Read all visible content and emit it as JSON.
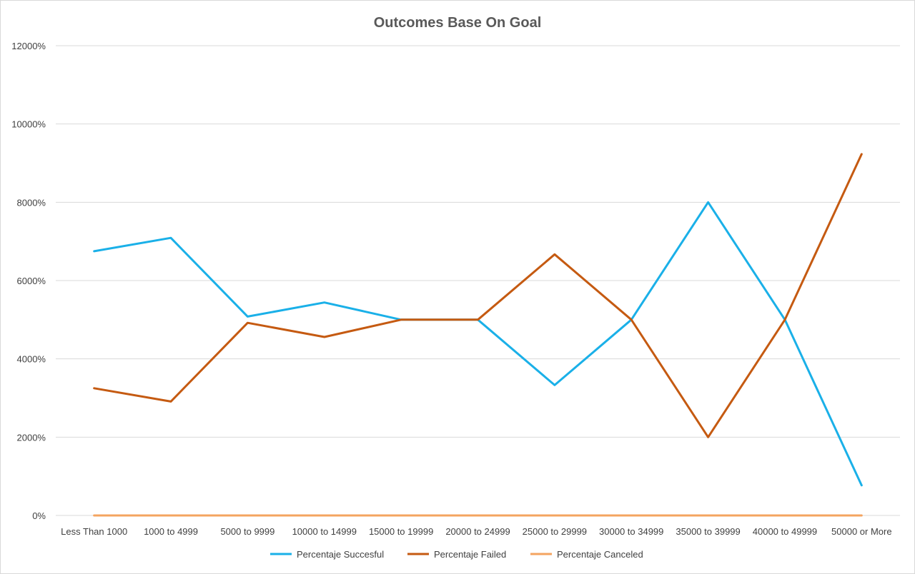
{
  "chart_data": {
    "type": "line",
    "title": "Outcomes Base On Goal",
    "xlabel": "",
    "ylabel": "",
    "categories": [
      "Less Than 1000",
      "1000 to 4999",
      "5000 to 9999",
      "10000 to 14999",
      "15000 to 19999",
      "20000 to 24999",
      "25000 to 29999",
      "30000 to 34999",
      "35000 to 39999",
      "40000 to 49999",
      "50000 or More"
    ],
    "y_ticks": [
      "0%",
      "2000%",
      "4000%",
      "6000%",
      "8000%",
      "10000%",
      "12000%"
    ],
    "ylim": [
      0,
      12000
    ],
    "grid": true,
    "legend_position": "bottom",
    "series": [
      {
        "name": "Percentaje Succesful",
        "color": "#1ab0e8",
        "values": [
          6750,
          7090,
          5080,
          5440,
          5000,
          5000,
          3330,
          5000,
          8000,
          5000,
          770
        ]
      },
      {
        "name": "Percentaje Failed",
        "color": "#c55a11",
        "values": [
          3250,
          2910,
          4920,
          4560,
          5000,
          5000,
          6670,
          5000,
          2000,
          5000,
          9230
        ]
      },
      {
        "name": "Percentaje Canceled",
        "color": "#f4a460",
        "values": [
          0,
          0,
          0,
          0,
          0,
          0,
          0,
          0,
          0,
          0,
          0
        ]
      }
    ]
  }
}
